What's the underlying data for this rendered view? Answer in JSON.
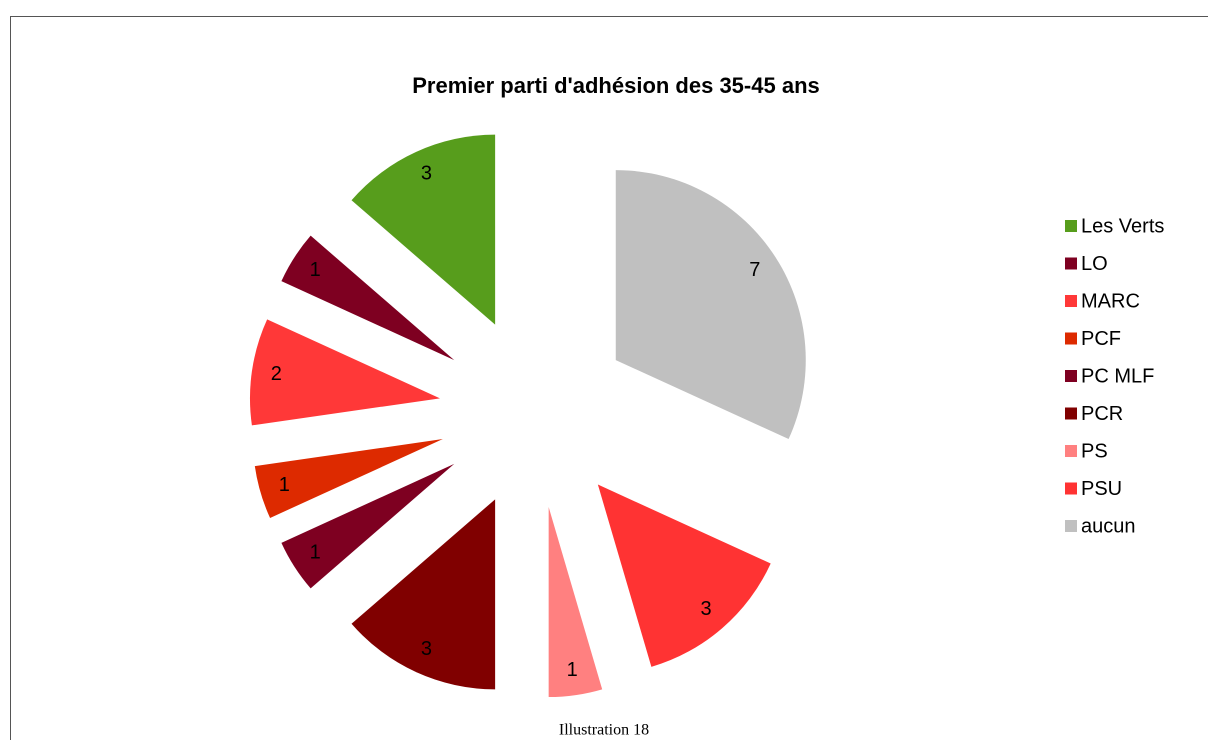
{
  "chart_data": {
    "type": "pie",
    "title": "Premier parti d'adhésion des 35-45 ans",
    "categories": [
      "Les Verts",
      "LO",
      "MARC",
      "PCF",
      "PC MLF",
      "PCR",
      "PS",
      "PSU",
      "aucun"
    ],
    "values": [
      3,
      1,
      2,
      1,
      1,
      3,
      1,
      3,
      7
    ],
    "colors": [
      "#579d1c",
      "#7e0021",
      "#ff3838",
      "#dd2a00",
      "#7e0021",
      "#800000",
      "#ff8080",
      "#ff3333",
      "#c0c0c0"
    ],
    "legend": "right"
  },
  "caption": "Illustration 18"
}
